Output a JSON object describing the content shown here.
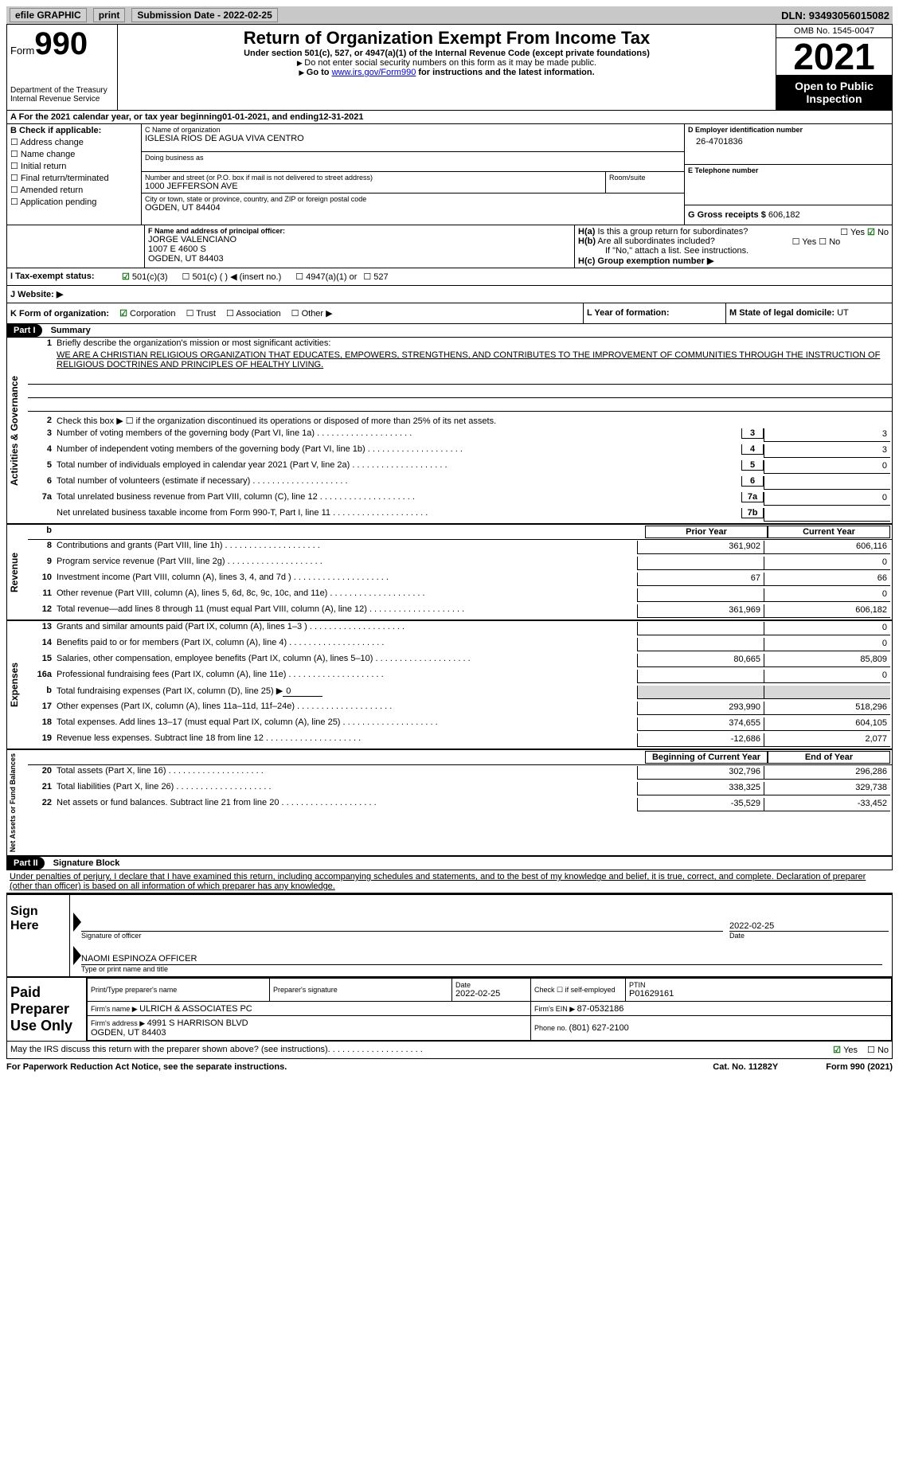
{
  "topbar": {
    "efile": "efile GRAPHIC",
    "print": "print",
    "submission_label": "Submission Date - ",
    "submission_date": "2022-02-25",
    "dln_label": "DLN: ",
    "dln": "93493056015082"
  },
  "header": {
    "form_prefix": "Form",
    "form_num": "990",
    "dept": "Department of the Treasury\nInternal Revenue Service",
    "title": "Return of Organization Exempt From Income Tax",
    "subtitle": "Under section 501(c), 527, or 4947(a)(1) of the Internal Revenue Code (except private foundations)",
    "note1": "Do not enter social security numbers on this form as it may be made public.",
    "note2_pre": "Go to ",
    "note2_link": "www.irs.gov/Form990",
    "note2_post": " for instructions and the latest information.",
    "omb": "OMB No. 1545-0047",
    "year": "2021",
    "inspect": "Open to Public Inspection"
  },
  "lineA": {
    "text": "A For the 2021 calendar year, or tax year beginning ",
    "begin": "01-01-2021",
    "mid": " , and ending ",
    "end": "12-31-2021"
  },
  "checkB": {
    "label": "B Check if applicable:",
    "items": [
      "Address change",
      "Name change",
      "Initial return",
      "Final return/terminated",
      "Amended return",
      "Application pending"
    ]
  },
  "blockC": {
    "name_lbl": "C Name of organization",
    "name": "IGLESIA RIOS DE AGUA VIVA CENTRO",
    "dba_lbl": "Doing business as",
    "street_lbl": "Number and street (or P.O. box if mail is not delivered to street address)",
    "street": "1000 JEFFERSON AVE",
    "room_lbl": "Room/suite",
    "city_lbl": "City or town, state or province, country, and ZIP or foreign postal code",
    "city": "OGDEN, UT  84404"
  },
  "blockD": {
    "lbl": "D Employer identification number",
    "val": "26-4701836"
  },
  "blockE": {
    "lbl": "E Telephone number",
    "val": ""
  },
  "blockG": {
    "lbl": "G Gross receipts $ ",
    "val": "606,182"
  },
  "blockF": {
    "lbl": "F Name and address of principal officer:",
    "name": "JORGE VALENCIANO",
    "addr1": "1007 E 4600 S",
    "addr2": "OGDEN, UT  84403"
  },
  "blockH": {
    "a": "H(a)  Is this a group return for subordinates?",
    "a_yes": "Yes",
    "a_no": "No",
    "b": "H(b)  Are all subordinates included?",
    "b_note": "If \"No,\" attach a list. See instructions.",
    "c": "H(c)  Group exemption number ▶"
  },
  "lineI": {
    "lbl": "I   Tax-exempt status:",
    "opts": [
      "501(c)(3)",
      "501(c) (  ) ◀ (insert no.)",
      "4947(a)(1) or",
      "527"
    ]
  },
  "lineJ": {
    "lbl": "J   Website: ▶",
    "val": ""
  },
  "lineK": {
    "lbl": "K Form of organization:",
    "opts": [
      "Corporation",
      "Trust",
      "Association",
      "Other ▶"
    ]
  },
  "lineL": {
    "lbl": "L Year of formation:",
    "val": ""
  },
  "lineM": {
    "lbl": "M State of legal domicile: ",
    "val": "UT"
  },
  "part1": {
    "title": "Part I",
    "heading": "Summary",
    "q1": "Briefly describe the organization's mission or most significant activities:",
    "mission": "WE ARE A CHRISTIAN RELIGIOUS ORGANIZATION THAT EDUCATES, EMPOWERS, STRENGTHENS, AND CONTRIBUTES TO THE IMPROVEMENT OF COMMUNITIES THROUGH THE INSTRUCTION OF RELIGIOUS DOCTRINES AND PRINCIPLES OF HEALTHY LIVING.",
    "q2": "Check this box ▶ ☐ if the organization discontinued its operations or disposed of more than 25% of its net assets.",
    "rows_gov": [
      {
        "n": "3",
        "t": "Number of voting members of the governing body (Part VI, line 1a)",
        "box": "3",
        "v": "3"
      },
      {
        "n": "4",
        "t": "Number of independent voting members of the governing body (Part VI, line 1b)",
        "box": "4",
        "v": "3"
      },
      {
        "n": "5",
        "t": "Total number of individuals employed in calendar year 2021 (Part V, line 2a)",
        "box": "5",
        "v": "0"
      },
      {
        "n": "6",
        "t": "Total number of volunteers (estimate if necessary)",
        "box": "6",
        "v": ""
      },
      {
        "n": "7a",
        "t": "Total unrelated business revenue from Part VIII, column (C), line 12",
        "box": "7a",
        "v": "0"
      },
      {
        "n": "",
        "t": "Net unrelated business taxable income from Form 990-T, Part I, line 11",
        "box": "7b",
        "v": ""
      }
    ],
    "col_prior": "Prior Year",
    "col_current": "Current Year",
    "rows_rev": [
      {
        "n": "8",
        "t": "Contributions and grants (Part VIII, line 1h)",
        "p": "361,902",
        "c": "606,116"
      },
      {
        "n": "9",
        "t": "Program service revenue (Part VIII, line 2g)",
        "p": "",
        "c": "0"
      },
      {
        "n": "10",
        "t": "Investment income (Part VIII, column (A), lines 3, 4, and 7d )",
        "p": "67",
        "c": "66"
      },
      {
        "n": "11",
        "t": "Other revenue (Part VIII, column (A), lines 5, 6d, 8c, 9c, 10c, and 11e)",
        "p": "",
        "c": "0"
      },
      {
        "n": "12",
        "t": "Total revenue—add lines 8 through 11 (must equal Part VIII, column (A), line 12)",
        "p": "361,969",
        "c": "606,182"
      }
    ],
    "rows_exp": [
      {
        "n": "13",
        "t": "Grants and similar amounts paid (Part IX, column (A), lines 1–3 )",
        "p": "",
        "c": "0"
      },
      {
        "n": "14",
        "t": "Benefits paid to or for members (Part IX, column (A), line 4)",
        "p": "",
        "c": "0"
      },
      {
        "n": "15",
        "t": "Salaries, other compensation, employee benefits (Part IX, column (A), lines 5–10)",
        "p": "80,665",
        "c": "85,809"
      },
      {
        "n": "16a",
        "t": "Professional fundraising fees (Part IX, column (A), line 11e)",
        "p": "",
        "c": "0"
      },
      {
        "n": "b",
        "t": "Total fundraising expenses (Part IX, column (D), line 25) ▶",
        "p": "shade",
        "c": "shade",
        "extra": "0"
      },
      {
        "n": "17",
        "t": "Other expenses (Part IX, column (A), lines 11a–11d, 11f–24e)",
        "p": "293,990",
        "c": "518,296"
      },
      {
        "n": "18",
        "t": "Total expenses. Add lines 13–17 (must equal Part IX, column (A), line 25)",
        "p": "374,655",
        "c": "604,105"
      },
      {
        "n": "19",
        "t": "Revenue less expenses. Subtract line 18 from line 12",
        "p": "-12,686",
        "c": "2,077"
      }
    ],
    "col_begin": "Beginning of Current Year",
    "col_end": "End of Year",
    "rows_net": [
      {
        "n": "20",
        "t": "Total assets (Part X, line 16)",
        "p": "302,796",
        "c": "296,286"
      },
      {
        "n": "21",
        "t": "Total liabilities (Part X, line 26)",
        "p": "338,325",
        "c": "329,738"
      },
      {
        "n": "22",
        "t": "Net assets or fund balances. Subtract line 21 from line 20",
        "p": "-35,529",
        "c": "-33,452"
      }
    ],
    "side_gov": "Activities & Governance",
    "side_rev": "Revenue",
    "side_exp": "Expenses",
    "side_net": "Net Assets or Fund Balances"
  },
  "part2": {
    "title": "Part II",
    "heading": "Signature Block",
    "perjury": "Under penalties of perjury, I declare that I have examined this return, including accompanying schedules and statements, and to the best of my knowledge and belief, it is true, correct, and complete. Declaration of preparer (other than officer) is based on all information of which preparer has any knowledge.",
    "sign_here": "Sign Here",
    "sig_officer_lbl": "Signature of officer",
    "sig_date": "2022-02-25",
    "date_lbl": "Date",
    "officer_name": "NAOMI ESPINOZA  OFFICER",
    "officer_lbl": "Type or print name and title",
    "paid": "Paid Preparer Use Only",
    "prep_name_lbl": "Print/Type preparer's name",
    "prep_sig_lbl": "Preparer's signature",
    "prep_date_lbl": "Date",
    "prep_date": "2022-02-25",
    "check_self": "Check ☐ if self-employed",
    "ptin_lbl": "PTIN",
    "ptin": "P01629161",
    "firm_name_lbl": "Firm's name    ▶ ",
    "firm_name": "ULRICH & ASSOCIATES PC",
    "firm_ein_lbl": "Firm's EIN ▶ ",
    "firm_ein": "87-0532186",
    "firm_addr_lbl": "Firm's address ▶ ",
    "firm_addr": "4991 S HARRISON BLVD\nOGDEN, UT  84403",
    "firm_phone_lbl": "Phone no. ",
    "firm_phone": "(801) 627-2100",
    "discuss": "May the IRS discuss this return with the preparer shown above? (see instructions)",
    "discuss_yes": "Yes",
    "discuss_no": "No"
  },
  "footer": {
    "left": "For Paperwork Reduction Act Notice, see the separate instructions.",
    "mid": "Cat. No. 11282Y",
    "right": "Form 990 (2021)"
  },
  "colors": {
    "topbar_bg": "#c8c8c8",
    "check_green": "#0a6e0a",
    "link": "#0000cc"
  }
}
